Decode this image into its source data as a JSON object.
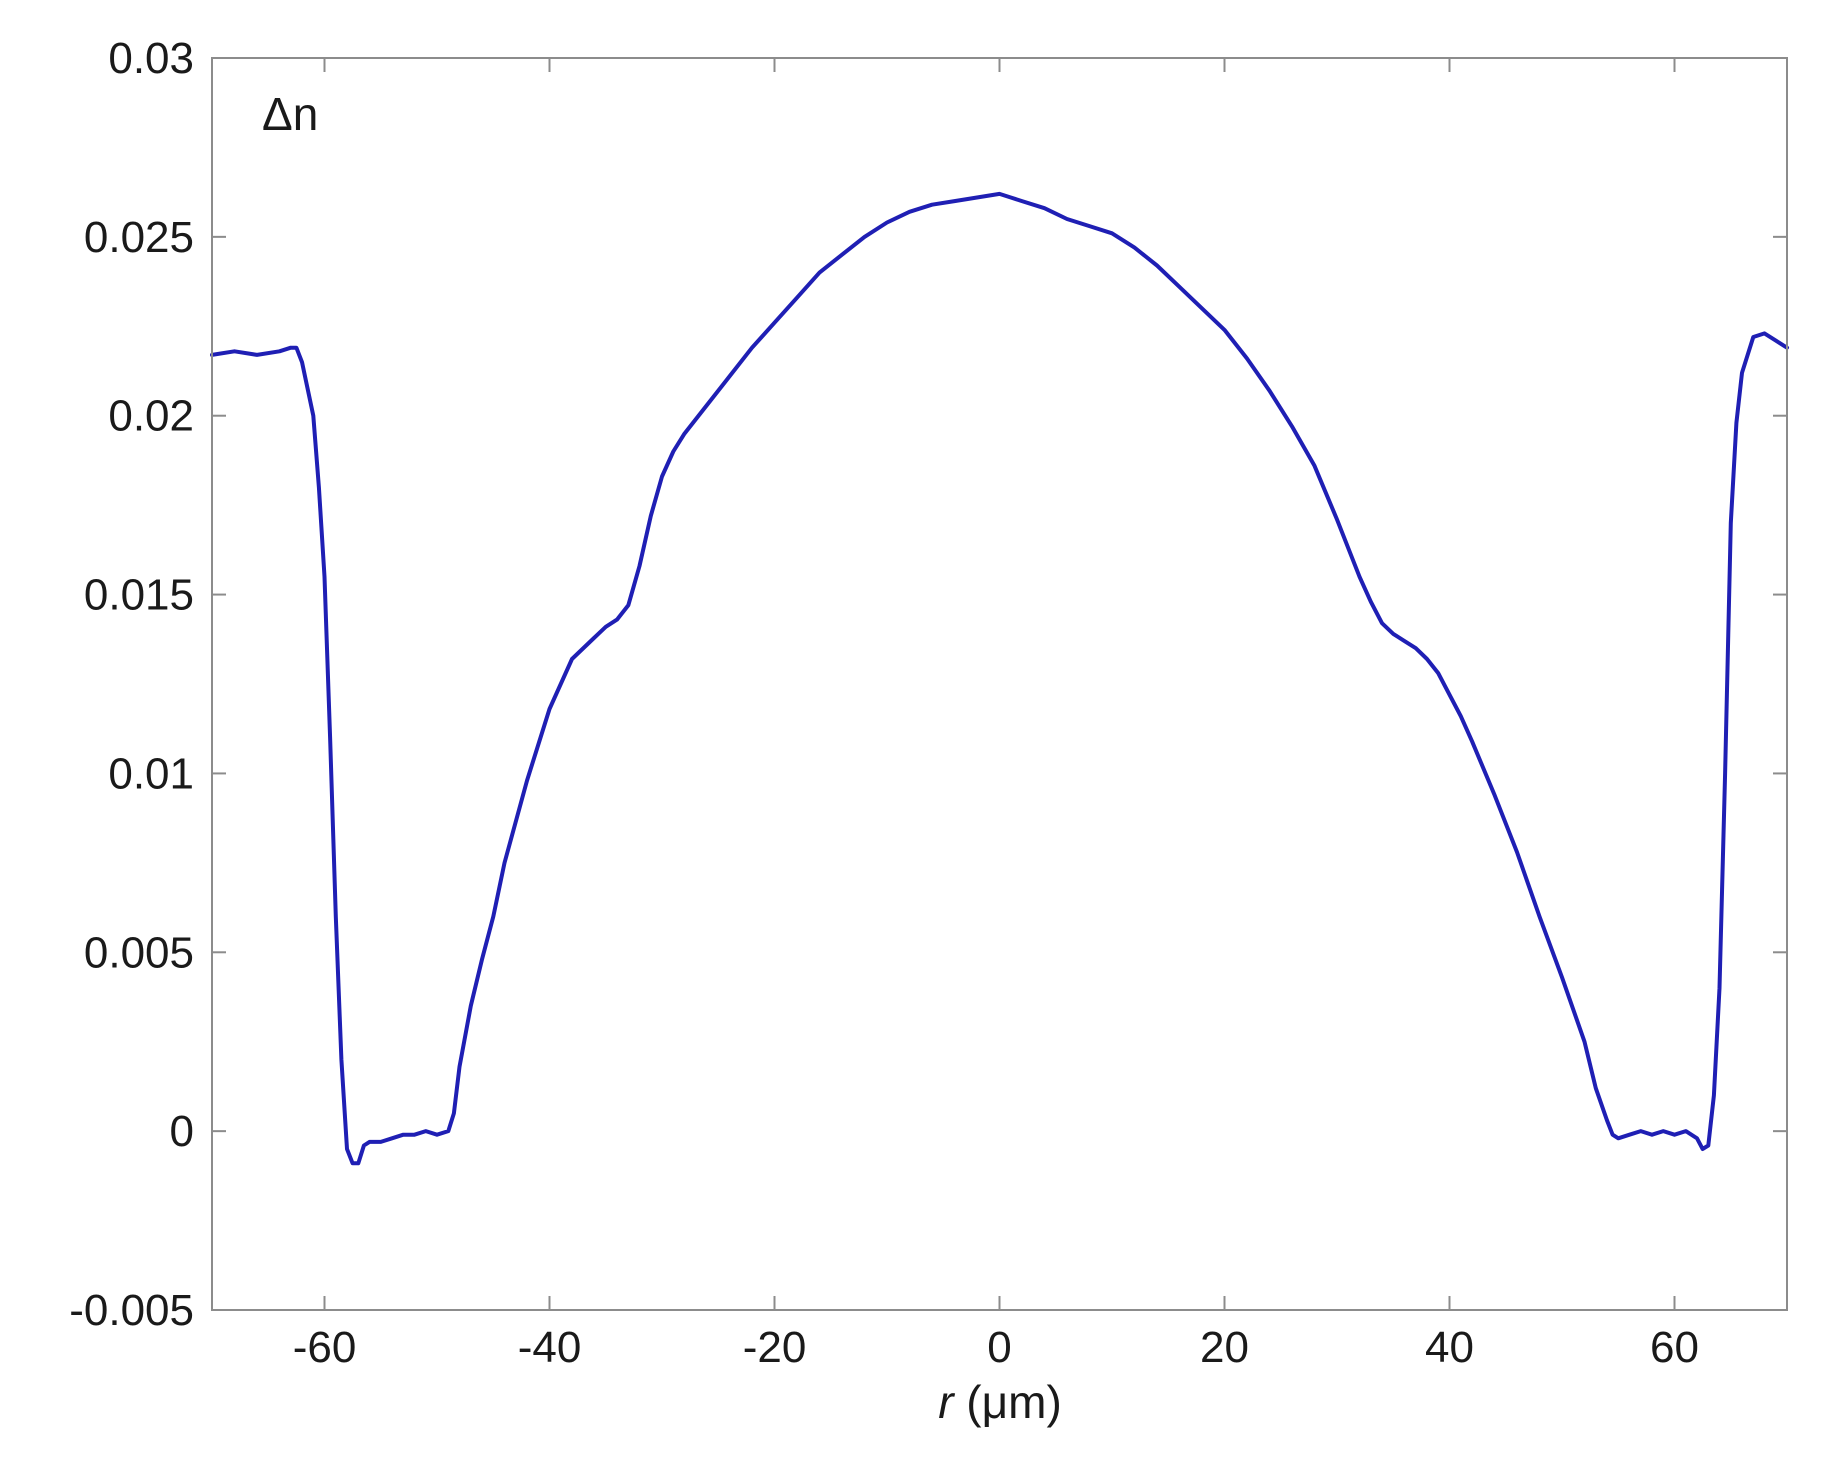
{
  "chart_data": {
    "type": "line",
    "title": "",
    "annotation": "Δn",
    "xlabel_var": "r",
    "xlabel_unit": " (μm)",
    "ylabel": "",
    "xlim": [
      -70,
      70
    ],
    "ylim": [
      -0.005,
      0.03
    ],
    "xticks": [
      -60,
      -40,
      -20,
      0,
      20,
      40,
      60
    ],
    "xtick_labels": [
      "-60",
      "-40",
      "-20",
      "0",
      "20",
      "40",
      "60"
    ],
    "yticks": [
      -0.005,
      0,
      0.005,
      0.01,
      0.015,
      0.02,
      0.025,
      0.03
    ],
    "ytick_labels": [
      "-0.005",
      "0",
      "0.005",
      "0.01",
      "0.015",
      "0.02",
      "0.025",
      "0.03"
    ],
    "grid": false,
    "line_color": "#1f1fb4",
    "series": [
      {
        "x": [
          -70,
          -68,
          -66,
          -64,
          -63,
          -62.5,
          -62,
          -61,
          -60.5,
          -60,
          -59.5,
          -59,
          -58.5,
          -58,
          -57.5,
          -57,
          -56.5,
          -56,
          -55,
          -54,
          -53,
          -52,
          -51,
          -50,
          -49,
          -48.5,
          -48,
          -47,
          -46,
          -45,
          -44,
          -42,
          -40,
          -38,
          -36,
          -35,
          -34,
          -33,
          -32,
          -31,
          -30,
          -29,
          -28,
          -27,
          -26,
          -24,
          -22,
          -20,
          -18,
          -16,
          -14,
          -12,
          -10,
          -8,
          -6,
          -4,
          -2,
          0,
          1,
          2,
          4,
          6,
          8,
          10,
          12,
          14,
          16,
          18,
          20,
          22,
          24,
          26,
          28,
          30,
          32,
          33,
          34,
          35,
          36,
          37,
          38,
          39,
          40,
          41,
          42,
          44,
          46,
          48,
          50,
          52,
          53,
          54,
          54.5,
          55,
          56,
          57,
          58,
          59,
          60,
          61,
          62,
          62.5,
          63,
          63.5,
          64,
          64.5,
          65,
          65.5,
          66,
          67,
          68,
          69,
          70
        ],
        "y": [
          0.0217,
          0.0218,
          0.0217,
          0.0218,
          0.0219,
          0.0219,
          0.0215,
          0.02,
          0.018,
          0.0155,
          0.011,
          0.006,
          0.002,
          -0.0005,
          -0.0009,
          -0.0009,
          -0.0004,
          -0.0003,
          -0.0003,
          -0.0002,
          -0.0001,
          -0.0001,
          0,
          -0.0001,
          0,
          0.0005,
          0.0018,
          0.0035,
          0.0048,
          0.006,
          0.0075,
          0.0098,
          0.0118,
          0.0132,
          0.0138,
          0.0141,
          0.0143,
          0.0147,
          0.0158,
          0.0172,
          0.0183,
          0.019,
          0.0195,
          0.0199,
          0.0203,
          0.0211,
          0.0219,
          0.0226,
          0.0233,
          0.024,
          0.0245,
          0.025,
          0.0254,
          0.0257,
          0.0259,
          0.026,
          0.0261,
          0.0262,
          0.0261,
          0.026,
          0.0258,
          0.0255,
          0.0253,
          0.0251,
          0.0247,
          0.0242,
          0.0236,
          0.023,
          0.0224,
          0.0216,
          0.0207,
          0.0197,
          0.0186,
          0.0171,
          0.0155,
          0.0148,
          0.0142,
          0.0139,
          0.0137,
          0.0135,
          0.0132,
          0.0128,
          0.0122,
          0.0116,
          0.0109,
          0.0094,
          0.0078,
          0.006,
          0.0043,
          0.0025,
          0.0012,
          0.0003,
          -0.0001,
          -0.0002,
          -0.0001,
          0,
          -0.0001,
          0,
          -0.0001,
          0,
          -0.0002,
          -0.0005,
          -0.0004,
          0.001,
          0.004,
          0.01,
          0.017,
          0.0198,
          0.0212,
          0.0222,
          0.0223,
          0.0221,
          0.0219
        ]
      }
    ]
  }
}
